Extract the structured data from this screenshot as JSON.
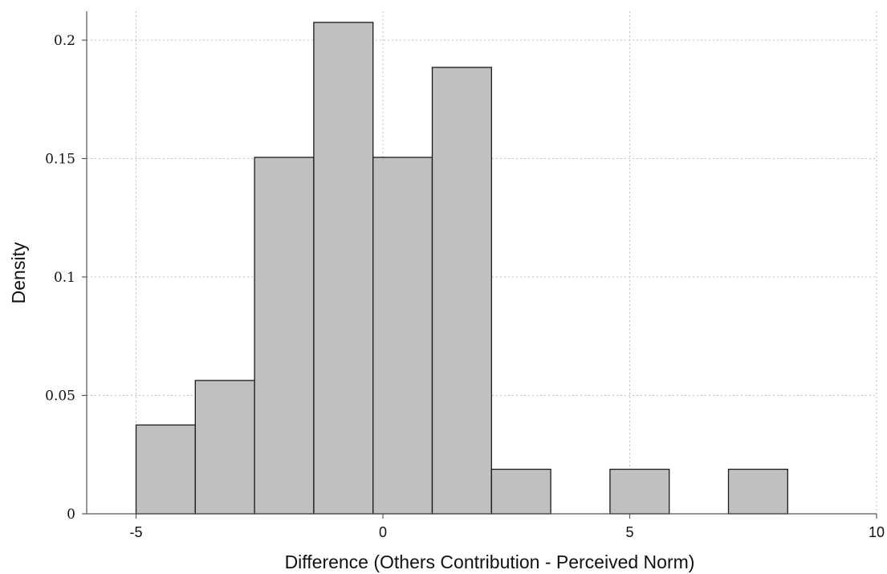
{
  "chart_data": {
    "type": "bar",
    "subtype": "histogram",
    "title": "",
    "xlabel": "Difference (Others Contribution - Perceived Norm)",
    "ylabel": "Density",
    "xlim": [
      -6.0,
      10.0
    ],
    "ylim": [
      0,
      0.2
    ],
    "xticks": [
      -5,
      0,
      5,
      10
    ],
    "xtick_labels": [
      "-5",
      "0",
      "5",
      "10"
    ],
    "yticks": [
      0,
      0.05,
      0.1,
      0.15,
      0.2
    ],
    "ytick_labels": [
      "0",
      "0.05",
      "0.1",
      "0.15",
      "0.2"
    ],
    "grid": true,
    "bar_color": "#c0c0c0",
    "edge_color": "#1a1a1a",
    "bins": [
      {
        "x0": -5.0,
        "x1": -3.8,
        "value": 0.0375
      },
      {
        "x0": -3.8,
        "x1": -2.6,
        "value": 0.0563
      },
      {
        "x0": -2.6,
        "x1": -1.4,
        "value": 0.1505
      },
      {
        "x0": -1.4,
        "x1": -0.2,
        "value": 0.2075
      },
      {
        "x0": -0.2,
        "x1": 1.0,
        "value": 0.1505
      },
      {
        "x0": 1.0,
        "x1": 2.2,
        "value": 0.1885
      },
      {
        "x0": 2.2,
        "x1": 3.4,
        "value": 0.0188
      },
      {
        "x0": 3.4,
        "x1": 4.6,
        "value": 0
      },
      {
        "x0": 4.6,
        "x1": 5.8,
        "value": 0.0188
      },
      {
        "x0": 5.8,
        "x1": 7.0,
        "value": 0
      },
      {
        "x0": 7.0,
        "x1": 8.2,
        "value": 0.0188
      }
    ]
  }
}
